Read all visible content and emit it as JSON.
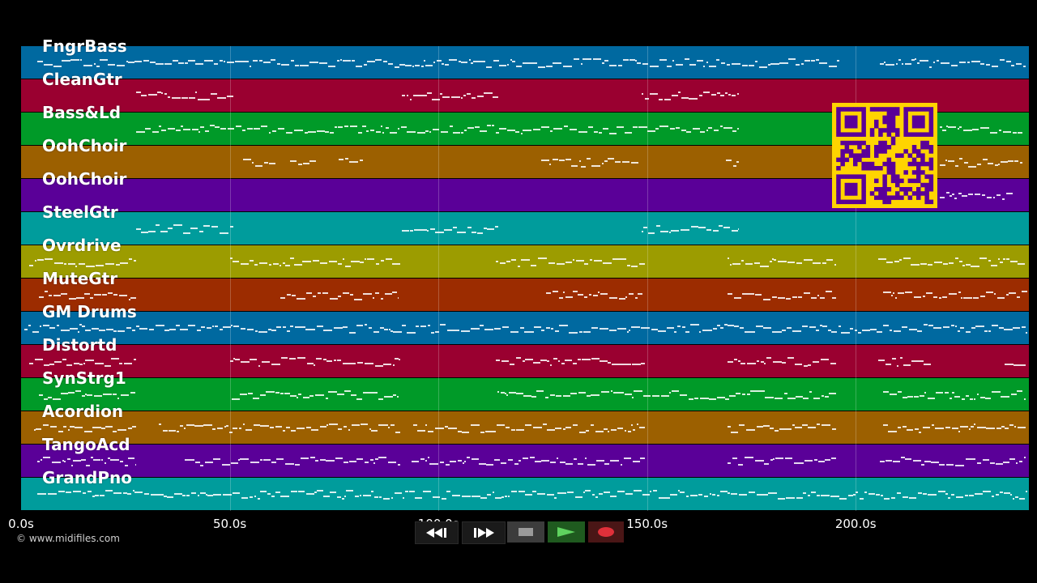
{
  "tracks": [
    {
      "name": "FngrBass",
      "color": "#0069a0"
    },
    {
      "name": "CleanGtr",
      "color": "#9a0030"
    },
    {
      "name": "Bass&Ld",
      "color": "#009a28"
    },
    {
      "name": "OohChoir",
      "color": "#9c6000"
    },
    {
      "name": "OohChoir",
      "color": "#5a0098"
    },
    {
      "name": "SteelGtr",
      "color": "#009c9c"
    },
    {
      "name": "Ovrdrive",
      "color": "#9c9c00"
    },
    {
      "name": "MuteGtr",
      "color": "#9c2c00"
    },
    {
      "name": "GM Drums",
      "color": "#0069a0"
    },
    {
      "name": "Distortd",
      "color": "#9a0030"
    },
    {
      "name": "SynStrg1",
      "color": "#009a28"
    },
    {
      "name": "Acordion",
      "color": "#9c6000"
    },
    {
      "name": "TangoAcd",
      "color": "#5a0098"
    },
    {
      "name": "GrandPno",
      "color": "#009c9c"
    }
  ],
  "timeline": {
    "ticks": [
      "0.0s",
      "50.0s",
      "100.0s",
      "150.0s",
      "200.0s"
    ],
    "tick_seconds": [
      0,
      50,
      100,
      150,
      200
    ],
    "max_seconds": 241.5
  },
  "copyright": "© www.midifiles.com",
  "qr": {
    "color": "#ffd400",
    "dark": "#5a0098"
  },
  "transport": {
    "rewind": "rewind-icon",
    "fast_forward": "fast-forward-icon",
    "stop": "stop-icon",
    "play": "play-icon",
    "record": "record-icon"
  }
}
